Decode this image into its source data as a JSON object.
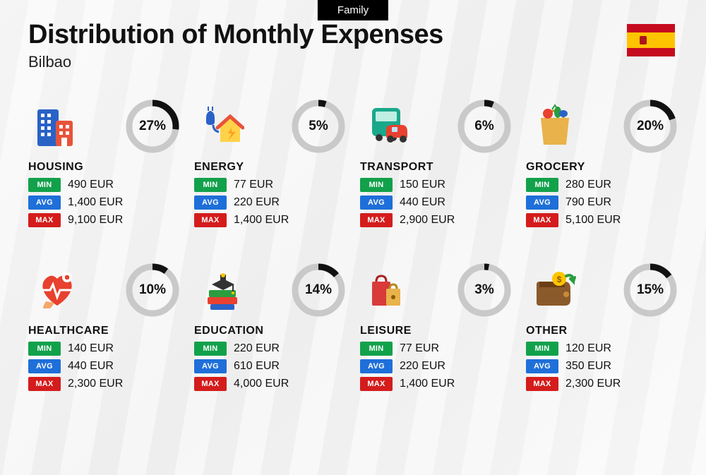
{
  "tag": "Family",
  "title": "Distribution of Monthly Expenses",
  "city": "Bilbao",
  "flag": {
    "top_color": "#c60b1e",
    "mid_color": "#ffc400",
    "bottom_color": "#c60b1e",
    "crest_color": "#ad1519"
  },
  "badges": {
    "min": {
      "label": "MIN",
      "bg": "#12a14b"
    },
    "avg": {
      "label": "AVG",
      "bg": "#1e6fd9"
    },
    "max": {
      "label": "MAX",
      "bg": "#d41c1c"
    }
  },
  "ring": {
    "track_color": "#c9c9c9",
    "fill_color": "#111111",
    "stroke_width": 9
  },
  "currency": "EUR",
  "categories": [
    {
      "name": "HOUSING",
      "percent": 27,
      "min": "490",
      "avg": "1,400",
      "max": "9,100",
      "icon": "building-icon"
    },
    {
      "name": "ENERGY",
      "percent": 5,
      "min": "77",
      "avg": "220",
      "max": "1,400",
      "icon": "energy-icon"
    },
    {
      "name": "TRANSPORT",
      "percent": 6,
      "min": "150",
      "avg": "440",
      "max": "2,900",
      "icon": "transport-icon"
    },
    {
      "name": "GROCERY",
      "percent": 20,
      "min": "280",
      "avg": "790",
      "max": "5,100",
      "icon": "grocery-icon"
    },
    {
      "name": "HEALTHCARE",
      "percent": 10,
      "min": "140",
      "avg": "440",
      "max": "2,300",
      "icon": "healthcare-icon"
    },
    {
      "name": "EDUCATION",
      "percent": 14,
      "min": "220",
      "avg": "610",
      "max": "4,000",
      "icon": "education-icon"
    },
    {
      "name": "LEISURE",
      "percent": 3,
      "min": "77",
      "avg": "220",
      "max": "1,400",
      "icon": "leisure-icon"
    },
    {
      "name": "OTHER",
      "percent": 15,
      "min": "120",
      "avg": "350",
      "max": "2,300",
      "icon": "other-icon"
    }
  ]
}
